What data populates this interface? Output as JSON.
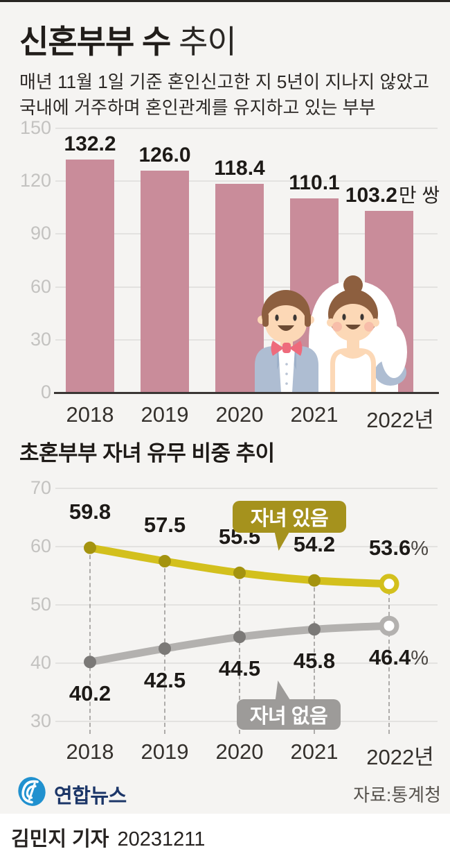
{
  "colors": {
    "background": "#f5f4f2",
    "bar": "#c98c9a",
    "grid_line": "#e3e2e0",
    "axis_line": "#3a3634",
    "tick_label": "#c3c2c0",
    "series_yellow": "#d3c01d",
    "series_yellow_dot": "#a4930f",
    "series_yellow_bubble": "#a5921d",
    "series_gray": "#b3b1af",
    "series_gray_dot": "#7b7977",
    "series_gray_bubble": "#9d9b99",
    "logo_blue": "#2191cf",
    "logo_navy": "#1c3668"
  },
  "header": {
    "title_strong": "신혼부부 수",
    "title_rest": " 추이",
    "subtitle_line1": "매년 11월 1일 기준 혼인신고한 지 5년이 지나지 않았고",
    "subtitle_line2": "국내에 거주하며 혼인관계를 유지하고 있는 부부"
  },
  "chart_data": [
    {
      "type": "bar",
      "title": "신혼부부 수 추이",
      "categories": [
        "2018",
        "2019",
        "2020",
        "2021",
        "2022년"
      ],
      "values": [
        132.2,
        126.0,
        118.4,
        110.1,
        103.2
      ],
      "value_labels": [
        "132.2",
        "126.0",
        "118.4",
        "110.1",
        "103.2"
      ],
      "last_label_suffix": "만 쌍",
      "ylim": [
        0,
        150
      ],
      "yticks": [
        150,
        120,
        90,
        60,
        30,
        0
      ],
      "grid": true,
      "bar_color": "#c98c9a"
    },
    {
      "type": "line",
      "title": "초혼부부 자녀 유무 비중 추이",
      "categories": [
        "2018",
        "2019",
        "2020",
        "2021",
        "2022년"
      ],
      "ylim": [
        30,
        70
      ],
      "yticks": [
        70,
        60,
        50,
        40,
        30
      ],
      "grid": true,
      "series": [
        {
          "name": "자녀 있음",
          "values": [
            59.8,
            57.5,
            55.5,
            54.2,
            53.6
          ],
          "value_labels": [
            "59.8",
            "57.5",
            "55.5",
            "54.2",
            "53.6%"
          ],
          "color": "#d3c01d",
          "dot_color": "#a4930f",
          "bubble_color": "#a5921d"
        },
        {
          "name": "자녀 없음",
          "values": [
            40.2,
            42.5,
            44.5,
            45.8,
            46.4
          ],
          "value_labels": [
            "40.2",
            "42.5",
            "44.5",
            "45.8",
            "46.4%"
          ],
          "color": "#b3b1af",
          "dot_color": "#7b7977",
          "bubble_color": "#9d9b99"
        }
      ]
    }
  ],
  "footer": {
    "logo_text": "연합뉴스",
    "source": "자료:통계청",
    "reporter": "김민지 기자",
    "date": "20231211"
  }
}
